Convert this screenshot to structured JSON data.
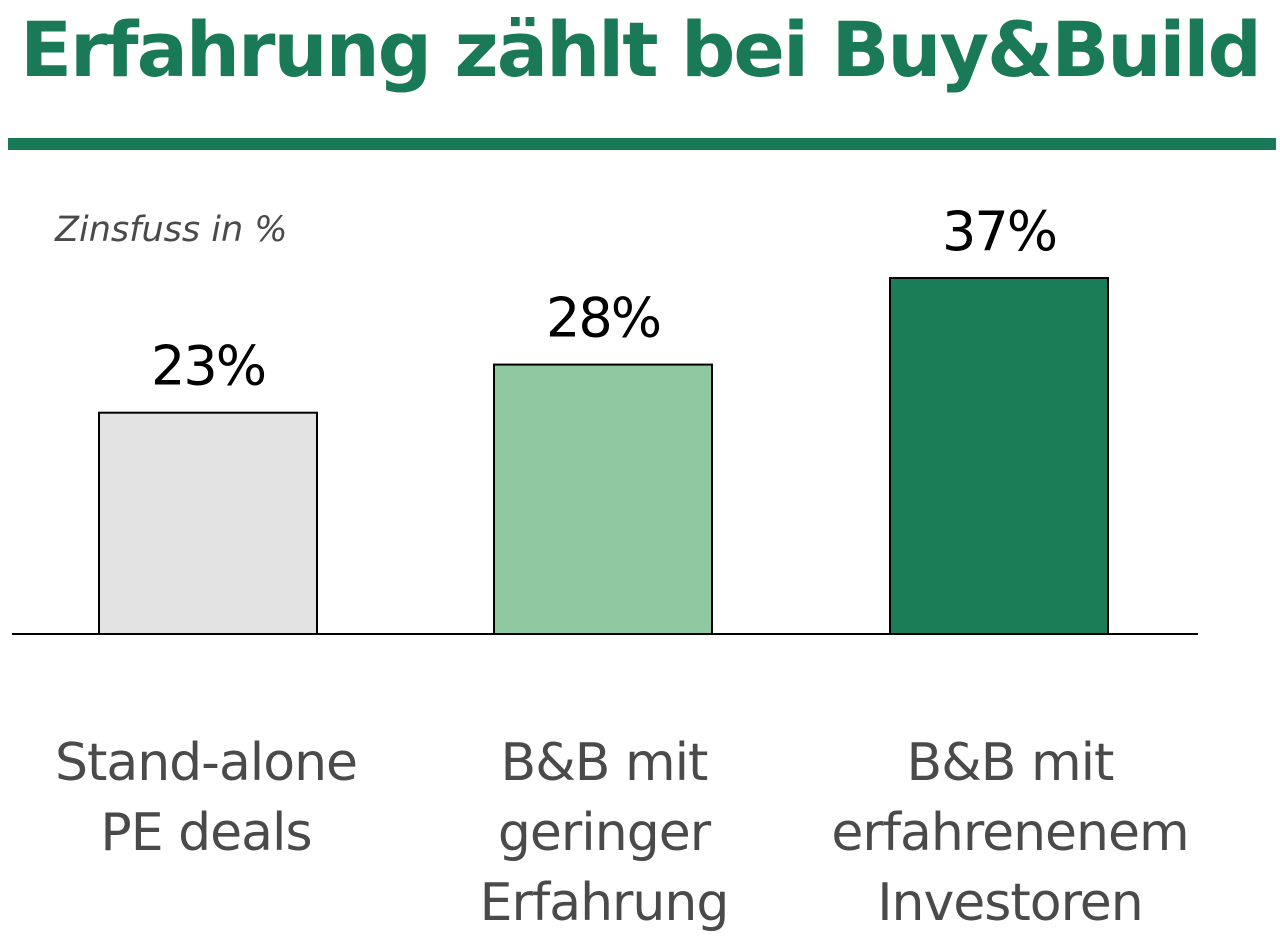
{
  "title": "Erfahrung zählt bei Buy&Build",
  "colors": {
    "accent": "#1a7a57"
  },
  "chart_data": {
    "type": "bar",
    "title": "Erfahrung zählt bei Buy&Build",
    "ylabel": "Zinsfuss in %",
    "xlabel": "",
    "ylim": [
      0,
      40
    ],
    "grid": false,
    "categories": [
      "Stand-alone\nPE deals",
      "B&B mit\ngeringer\nErfahrung",
      "B&B mit\nerfahrenenem\nInvestoren"
    ],
    "values": [
      23,
      28,
      37
    ],
    "value_labels": [
      "23%",
      "28%",
      "37%"
    ],
    "bar_colors": [
      "#e3e3e3",
      "#8fc8a1",
      "#1a7d58"
    ]
  }
}
